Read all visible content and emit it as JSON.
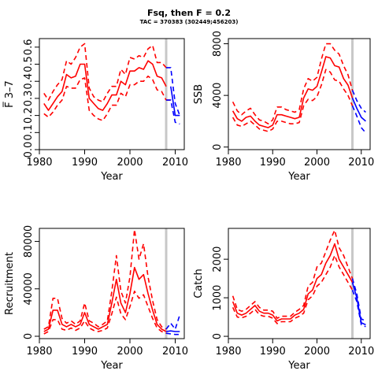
{
  "title": "Fsq, then F = 0.2",
  "subtitle": "TAC = 370383 (302449;456203)",
  "colors": {
    "history": "#ff0000",
    "projection": "#0000ff",
    "divider": "#c8c8c8"
  },
  "chart_data": [
    {
      "type": "line",
      "ylabel": "F̅ 3–7",
      "xlabel": "Year",
      "xlim": [
        1980,
        2012
      ],
      "ylim": [
        0,
        0.65
      ],
      "x_ticks": [
        "1980",
        "1990",
        "2000",
        "2010"
      ],
      "y_ticks": [
        "0.0",
        "0.1",
        "0.2",
        "0.3",
        "0.4",
        "0.5",
        "0.6"
      ],
      "divider_year": 2008,
      "series": [
        {
          "role": "median",
          "style": "solid",
          "color": "red",
          "x": [
            1981,
            1982,
            1983,
            1984,
            1985,
            1986,
            1987,
            1988,
            1989,
            1990,
            1991,
            1992,
            1993,
            1994,
            1995,
            1996,
            1997,
            1998,
            1999,
            2000,
            2001,
            2002,
            2003,
            2004,
            2005,
            2006,
            2007,
            2008
          ],
          "y": [
            0.27,
            0.23,
            0.27,
            0.31,
            0.34,
            0.44,
            0.42,
            0.43,
            0.5,
            0.5,
            0.3,
            0.27,
            0.24,
            0.23,
            0.27,
            0.32,
            0.32,
            0.4,
            0.38,
            0.46,
            0.46,
            0.48,
            0.47,
            0.52,
            0.5,
            0.43,
            0.42,
            0.37
          ]
        },
        {
          "role": "upper",
          "style": "dashed",
          "color": "red",
          "x": [
            1981,
            1982,
            1983,
            1984,
            1985,
            1986,
            1987,
            1988,
            1989,
            1990,
            1991,
            1992,
            1993,
            1994,
            1995,
            1996,
            1997,
            1998,
            1999,
            2000,
            2001,
            2002,
            2003,
            2004,
            2005,
            2006,
            2007,
            2008
          ],
          "y": [
            0.33,
            0.29,
            0.34,
            0.38,
            0.41,
            0.52,
            0.5,
            0.54,
            0.6,
            0.62,
            0.36,
            0.31,
            0.29,
            0.28,
            0.33,
            0.37,
            0.37,
            0.47,
            0.44,
            0.54,
            0.53,
            0.55,
            0.54,
            0.59,
            0.61,
            0.51,
            0.51,
            0.48
          ]
        },
        {
          "role": "lower",
          "style": "dashed",
          "color": "red",
          "x": [
            1981,
            1982,
            1983,
            1984,
            1985,
            1986,
            1987,
            1988,
            1989,
            1990,
            1991,
            1992,
            1993,
            1994,
            1995,
            1996,
            1997,
            1998,
            1999,
            2000,
            2001,
            2002,
            2003,
            2004,
            2005,
            2006,
            2007,
            2008
          ],
          "y": [
            0.21,
            0.19,
            0.22,
            0.26,
            0.29,
            0.37,
            0.36,
            0.36,
            0.41,
            0.42,
            0.23,
            0.2,
            0.18,
            0.17,
            0.21,
            0.26,
            0.26,
            0.33,
            0.31,
            0.38,
            0.38,
            0.4,
            0.4,
            0.43,
            0.41,
            0.35,
            0.34,
            0.29
          ]
        },
        {
          "role": "median",
          "style": "solid",
          "color": "red",
          "x": [
            2008,
            2009
          ],
          "y": [
            0.29,
            0.29
          ]
        },
        {
          "role": "median",
          "style": "solid",
          "color": "blue",
          "x": [
            2009,
            2010,
            2011
          ],
          "y": [
            0.37,
            0.2,
            0.2
          ]
        },
        {
          "role": "upper",
          "style": "dashed",
          "color": "blue",
          "x": [
            2008,
            2009,
            2010,
            2011
          ],
          "y": [
            0.48,
            0.48,
            0.27,
            0.2
          ]
        },
        {
          "role": "lower",
          "style": "dashed",
          "color": "blue",
          "x": [
            2008,
            2009,
            2010,
            2011
          ],
          "y": [
            0.29,
            0.29,
            0.16,
            0.15
          ]
        }
      ]
    },
    {
      "type": "line",
      "ylabel": "SSB",
      "xlabel": "Year",
      "xlim": [
        1980,
        2012
      ],
      "ylim": [
        -200,
        8400
      ],
      "x_ticks": [
        "1980",
        "1990",
        "2000",
        "2010"
      ],
      "y_ticks": [
        "0",
        "4000",
        "8000"
      ],
      "divider_year": 2008,
      "series": [
        {
          "role": "median",
          "style": "solid",
          "color": "red",
          "x": [
            1981,
            1982,
            1983,
            1984,
            1985,
            1986,
            1987,
            1988,
            1989,
            1990,
            1991,
            1992,
            1993,
            1994,
            1995,
            1996,
            1997,
            1998,
            1999,
            2000,
            2001,
            2002,
            2003,
            2004,
            2005,
            2006,
            2007,
            2008
          ],
          "y": [
            2800,
            2200,
            2000,
            2300,
            2400,
            2000,
            1700,
            1600,
            1500,
            1700,
            2500,
            2500,
            2400,
            2300,
            2200,
            2300,
            3800,
            4500,
            4400,
            4700,
            5800,
            7000,
            6900,
            6300,
            6200,
            5300,
            4800,
            3800
          ]
        },
        {
          "role": "upper",
          "style": "dashed",
          "color": "red",
          "x": [
            1981,
            1982,
            1983,
            1984,
            1985,
            1986,
            1987,
            1988,
            1989,
            1990,
            1991,
            1992,
            1993,
            1994,
            1995,
            1996,
            1997,
            1998,
            1999,
            2000,
            2001,
            2002,
            2003,
            2004,
            2005,
            2006,
            2007,
            2008
          ],
          "y": [
            3500,
            2800,
            2500,
            2800,
            3000,
            2500,
            2100,
            2000,
            1800,
            2100,
            3100,
            3100,
            2900,
            2800,
            2700,
            2900,
            4500,
            5300,
            5100,
            5400,
            6800,
            8000,
            8000,
            7500,
            7200,
            6300,
            5600,
            4400
          ]
        },
        {
          "role": "lower",
          "style": "dashed",
          "color": "red",
          "x": [
            1981,
            1982,
            1983,
            1984,
            1985,
            1986,
            1987,
            1988,
            1989,
            1990,
            1991,
            1992,
            1993,
            1994,
            1995,
            1996,
            1997,
            1998,
            1999,
            2000,
            2001,
            2002,
            2003,
            2004,
            2005,
            2006,
            2007,
            2008
          ],
          "y": [
            2300,
            1700,
            1600,
            1800,
            2000,
            1700,
            1400,
            1300,
            1200,
            1400,
            2000,
            2000,
            1900,
            1800,
            1800,
            1900,
            3200,
            3700,
            3600,
            3900,
            4800,
            6000,
            5800,
            5200,
            5100,
            4500,
            4000,
            3200
          ]
        },
        {
          "role": "median",
          "style": "solid",
          "color": "blue",
          "x": [
            2008,
            2009,
            2010,
            2011
          ],
          "y": [
            3800,
            3000,
            2300,
            2000
          ]
        },
        {
          "role": "upper",
          "style": "dashed",
          "color": "blue",
          "x": [
            2008,
            2009,
            2010,
            2011
          ],
          "y": [
            4400,
            3600,
            3000,
            2700
          ]
        },
        {
          "role": "lower",
          "style": "dashed",
          "color": "blue",
          "x": [
            2008,
            2009,
            2010,
            2011
          ],
          "y": [
            3200,
            2400,
            1500,
            1100
          ]
        }
      ]
    },
    {
      "type": "line",
      "ylabel": "Recruitment",
      "xlabel": "Year",
      "xlim": [
        1980,
        2012
      ],
      "ylim": [
        -2000,
        91000
      ],
      "x_ticks": [
        "1980",
        "1990",
        "2000",
        "2010"
      ],
      "y_ticks": [
        "0",
        "40000",
        "80000"
      ],
      "divider_year": 2008,
      "series": [
        {
          "role": "median",
          "style": "solid",
          "color": "red",
          "x": [
            1981,
            1982,
            1983,
            1984,
            1985,
            1986,
            1987,
            1988,
            1989,
            1990,
            1991,
            1992,
            1993,
            1994,
            1995,
            1996,
            1997,
            1998,
            1999,
            2000,
            2001,
            2002,
            2003,
            2004,
            2005,
            2006,
            2007,
            2008
          ],
          "y": [
            4000,
            6000,
            22000,
            22000,
            10000,
            8000,
            10000,
            8000,
            10000,
            20000,
            10000,
            8000,
            6000,
            8000,
            10000,
            28000,
            48000,
            28000,
            20000,
            36000,
            58000,
            48000,
            52000,
            36000,
            22000,
            10000,
            6000,
            4000
          ]
        },
        {
          "role": "upper",
          "style": "dashed",
          "color": "red",
          "x": [
            1981,
            1982,
            1983,
            1984,
            1985,
            1986,
            1987,
            1988,
            1989,
            1990,
            1991,
            1992,
            1993,
            1994,
            1995,
            1996,
            1997,
            1998,
            1999,
            2000,
            2001,
            2002,
            2003,
            2004,
            2005,
            2006,
            2007,
            2008
          ],
          "y": [
            6000,
            8000,
            32000,
            32000,
            15000,
            11000,
            13000,
            10000,
            13000,
            28000,
            13000,
            11000,
            8000,
            10000,
            13000,
            38000,
            68000,
            38000,
            28000,
            50000,
            90000,
            65000,
            78000,
            50000,
            30000,
            14000,
            8000,
            6000
          ]
        },
        {
          "role": "lower",
          "style": "dashed",
          "color": "red",
          "x": [
            1981,
            1982,
            1983,
            1984,
            1985,
            1986,
            1987,
            1988,
            1989,
            1990,
            1991,
            1992,
            1993,
            1994,
            1995,
            1996,
            1997,
            1998,
            1999,
            2000,
            2001,
            2002,
            2003,
            2004,
            2005,
            2006,
            2007,
            2008
          ],
          "y": [
            2000,
            4000,
            14000,
            14000,
            6000,
            5000,
            7000,
            5000,
            7000,
            13000,
            7000,
            5000,
            4000,
            5000,
            7000,
            19000,
            33000,
            19000,
            14000,
            25000,
            38000,
            32000,
            35000,
            25000,
            15000,
            7000,
            4000,
            2500
          ]
        },
        {
          "role": "median",
          "style": "solid",
          "color": "blue",
          "x": [
            2008,
            2009,
            2010,
            2011
          ],
          "y": [
            4000,
            4500,
            4000,
            4000
          ]
        },
        {
          "role": "upper",
          "style": "dashed",
          "color": "blue",
          "x": [
            2008,
            2009,
            2010,
            2011
          ],
          "y": [
            6000,
            11000,
            6000,
            18000
          ]
        },
        {
          "role": "lower",
          "style": "dashed",
          "color": "blue",
          "x": [
            2008,
            2009,
            2010,
            2011
          ],
          "y": [
            2500,
            2000,
            1500,
            1500
          ]
        }
      ]
    },
    {
      "type": "line",
      "ylabel": "Catch",
      "xlabel": "Year",
      "xlim": [
        1980,
        2012
      ],
      "ylim": [
        -60,
        2800
      ],
      "x_ticks": [
        "1980",
        "1990",
        "2000",
        "2010"
      ],
      "y_ticks": [
        "0",
        "1000",
        "2000"
      ],
      "divider_year": 2008,
      "series": [
        {
          "role": "median",
          "style": "solid",
          "color": "red",
          "x": [
            1981,
            1982,
            1983,
            1984,
            1985,
            1986,
            1987,
            1988,
            1989,
            1990,
            1991,
            1992,
            1993,
            1994,
            1995,
            1996,
            1997,
            1998,
            1999,
            2000,
            2001,
            2002,
            2003,
            2004,
            2005,
            2006,
            2007,
            2008
          ],
          "y": [
            900,
            600,
            550,
            600,
            700,
            800,
            650,
            600,
            600,
            550,
            400,
            450,
            450,
            450,
            550,
            600,
            700,
            1100,
            1200,
            1500,
            1600,
            1900,
            2100,
            2400,
            2000,
            1800,
            1600,
            1400
          ]
        },
        {
          "role": "upper",
          "style": "dashed",
          "color": "red",
          "x": [
            1981,
            1982,
            1983,
            1984,
            1985,
            1986,
            1987,
            1988,
            1989,
            1990,
            1991,
            1992,
            1993,
            1994,
            1995,
            1996,
            1997,
            1998,
            1999,
            2000,
            2001,
            2002,
            2003,
            2004,
            2005,
            2006,
            2007,
            2008
          ],
          "y": [
            1050,
            700,
            650,
            700,
            800,
            900,
            750,
            680,
            680,
            650,
            470,
            520,
            520,
            520,
            620,
            700,
            800,
            1300,
            1400,
            1800,
            1900,
            2200,
            2500,
            2750,
            2300,
            2100,
            1800,
            1500
          ]
        },
        {
          "role": "lower",
          "style": "dashed",
          "color": "red",
          "x": [
            1981,
            1982,
            1983,
            1984,
            1985,
            1986,
            1987,
            1988,
            1989,
            1990,
            1991,
            1992,
            1993,
            1994,
            1995,
            1996,
            1997,
            1998,
            1999,
            2000,
            2001,
            2002,
            2003,
            2004,
            2005,
            2006,
            2007,
            2008
          ],
          "y": [
            750,
            500,
            480,
            520,
            600,
            700,
            560,
            520,
            520,
            470,
            330,
            380,
            380,
            380,
            470,
            520,
            600,
            950,
            1050,
            1300,
            1400,
            1600,
            1800,
            2100,
            1800,
            1600,
            1400,
            1200
          ]
        },
        {
          "role": "median",
          "style": "solid",
          "color": "blue",
          "x": [
            2008,
            2009,
            2010,
            2011
          ],
          "y": [
            1400,
            1000,
            350,
            300
          ]
        },
        {
          "role": "upper",
          "style": "dashed",
          "color": "blue",
          "x": [
            2008,
            2009,
            2010,
            2011
          ],
          "y": [
            1500,
            1100,
            450,
            400
          ]
        },
        {
          "role": "lower",
          "style": "dashed",
          "color": "blue",
          "x": [
            2008,
            2009,
            2010,
            2011
          ],
          "y": [
            1200,
            900,
            300,
            250
          ]
        }
      ]
    }
  ]
}
